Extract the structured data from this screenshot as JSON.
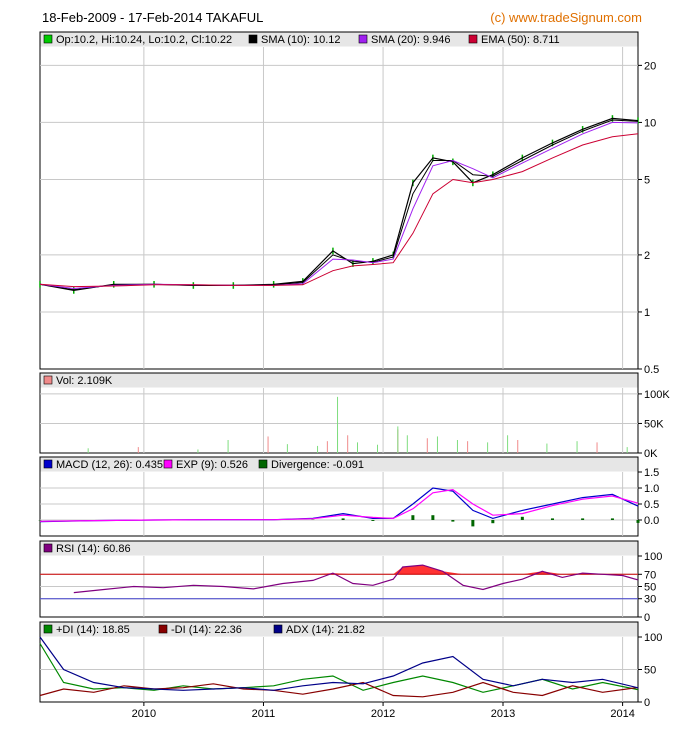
{
  "header": {
    "title": "18-Feb-2009 - 17-Feb-2014 TAKAFUL",
    "credit": "(c) www.tradeSignum.com"
  },
  "colors": {
    "price_up": "#00aa00",
    "price_bar": "#000000",
    "sma10": "#000000",
    "sma20": "#a020f0",
    "ema50": "#cc0033",
    "vol_up": "#7fdd7f",
    "vol_down": "#f08a8a",
    "macd": "#0000cc",
    "exp": "#ff00ff",
    "divergence": "#006600",
    "rsi": "#800080",
    "rsi_fill": "#ff3333",
    "rsi_70": "#cc0000",
    "rsi_30": "#4040cc",
    "pdi": "#008800",
    "mdi": "#880000",
    "adx": "#000088",
    "legend_bg": "#e6e6e6",
    "grid": "#c8c8c8"
  },
  "chart_data": [
    {
      "type": "line",
      "panel": "price",
      "scale": "log",
      "ylim": [
        0.5,
        25
      ],
      "yticks": [
        {
          "value": 0.5,
          "label": "0.5"
        },
        {
          "value": 1,
          "label": "1"
        },
        {
          "value": 2,
          "label": "2"
        },
        {
          "value": 5,
          "label": "5"
        },
        {
          "value": 10,
          "label": "10"
        },
        {
          "value": 20,
          "label": "20"
        }
      ],
      "legend": [
        {
          "swatch": "#00cc00",
          "text": "Op:10.2, Hi:10.24, Lo:10.2, Cl:10.22"
        },
        {
          "swatch": "#000000",
          "text": "SMA (10): 10.12"
        },
        {
          "swatch": "#a020f0",
          "text": "SMA (20): 9.946"
        },
        {
          "swatch": "#cc0033",
          "text": "EMA (50): 8.711"
        }
      ],
      "x": [
        "2009-02-18",
        "2009-06-01",
        "2009-10-01",
        "2010-02-01",
        "2010-06-01",
        "2010-10-01",
        "2011-02-01",
        "2011-05-01",
        "2011-08-01",
        "2011-10-01",
        "2011-12-01",
        "2012-02-01",
        "2012-04-01",
        "2012-06-01",
        "2012-08-01",
        "2012-10-01",
        "2012-12-01",
        "2013-03-01",
        "2013-06-01",
        "2013-09-01",
        "2013-12-01",
        "2014-02-17"
      ],
      "series": [
        {
          "key": "close",
          "values": [
            1.4,
            1.3,
            1.4,
            1.4,
            1.38,
            1.38,
            1.4,
            1.45,
            2.1,
            1.8,
            1.85,
            2.0,
            4.8,
            6.5,
            6.2,
            4.8,
            5.3,
            6.5,
            7.8,
            9.2,
            10.5,
            10.22
          ]
        },
        {
          "key": "sma10",
          "values": [
            1.4,
            1.31,
            1.39,
            1.4,
            1.38,
            1.38,
            1.39,
            1.43,
            2.0,
            1.85,
            1.83,
            1.95,
            4.2,
            6.3,
            6.3,
            5.3,
            5.2,
            6.3,
            7.6,
            9.0,
            10.3,
            10.12
          ]
        },
        {
          "key": "sma20",
          "values": [
            1.4,
            1.33,
            1.38,
            1.4,
            1.39,
            1.38,
            1.38,
            1.41,
            1.9,
            1.88,
            1.82,
            1.9,
            3.5,
            5.9,
            6.3,
            5.7,
            5.1,
            6.1,
            7.3,
            8.7,
            10.0,
            9.946
          ]
        },
        {
          "key": "ema50",
          "values": [
            1.4,
            1.36,
            1.37,
            1.39,
            1.39,
            1.38,
            1.38,
            1.39,
            1.65,
            1.75,
            1.78,
            1.82,
            2.6,
            4.2,
            5.0,
            4.8,
            5.0,
            5.5,
            6.5,
            7.6,
            8.4,
            8.711
          ]
        }
      ]
    },
    {
      "type": "bar",
      "panel": "volume",
      "ylim": [
        0,
        110
      ],
      "yticks": [
        {
          "value": 0,
          "label": "0K"
        },
        {
          "value": 50,
          "label": "50K"
        },
        {
          "value": 100,
          "label": "100K"
        }
      ],
      "legend": [
        {
          "swatch": "#f08a8a",
          "text": "Vol: 2.109K"
        }
      ],
      "x": [
        "2009-07",
        "2009-12",
        "2010-06",
        "2010-09",
        "2011-01",
        "2011-03",
        "2011-06",
        "2011-07",
        "2011-08",
        "2011-08",
        "2011-09",
        "2011-10",
        "2011-12",
        "2012-02",
        "2012-02",
        "2012-03",
        "2012-05",
        "2012-06",
        "2012-08",
        "2012-09",
        "2012-11",
        "2013-01",
        "2013-02",
        "2013-05",
        "2013-08",
        "2013-10",
        "2014-01"
      ],
      "values": [
        8,
        10,
        6,
        22,
        28,
        15,
        12,
        20,
        95,
        35,
        30,
        18,
        14,
        40,
        45,
        30,
        25,
        28,
        22,
        20,
        18,
        30,
        22,
        16,
        20,
        18,
        10
      ]
    },
    {
      "type": "line",
      "panel": "macd",
      "ylim": [
        -0.5,
        1.5
      ],
      "yticks": [
        {
          "value": 0,
          "label": "0.0"
        },
        {
          "value": 0.5,
          "label": "0.5"
        },
        {
          "value": 1,
          "label": "1.0"
        },
        {
          "value": 1.5,
          "label": "1.5"
        }
      ],
      "legend": [
        {
          "swatch": "#0000cc",
          "text": "MACD (12, 26): 0.435"
        },
        {
          "swatch": "#ff00ff",
          "text": "EXP (9): 0.526"
        },
        {
          "swatch": "#006600",
          "text": "Divergence: -0.091"
        }
      ],
      "x": [
        "2009-02-18",
        "2009-08-01",
        "2010-02-01",
        "2010-08-01",
        "2011-02-01",
        "2011-06-01",
        "2011-09-01",
        "2011-12-01",
        "2012-02-01",
        "2012-04-01",
        "2012-06-01",
        "2012-08-01",
        "2012-10-01",
        "2012-12-01",
        "2013-03-01",
        "2013-06-01",
        "2013-09-01",
        "2013-12-01",
        "2014-02-17"
      ],
      "series": [
        {
          "key": "macd",
          "values": [
            -0.05,
            -0.02,
            0.0,
            0.01,
            0.01,
            0.05,
            0.2,
            0.05,
            0.05,
            0.5,
            1.0,
            0.9,
            0.3,
            0.05,
            0.3,
            0.5,
            0.7,
            0.8,
            0.435
          ]
        },
        {
          "key": "exp",
          "values": [
            -0.04,
            -0.02,
            0.0,
            0.01,
            0.01,
            0.04,
            0.15,
            0.08,
            0.05,
            0.35,
            0.85,
            0.95,
            0.5,
            0.15,
            0.2,
            0.45,
            0.65,
            0.75,
            0.526
          ]
        },
        {
          "key": "divergence",
          "values": [
            -0.01,
            0.0,
            0.0,
            0.0,
            0.0,
            0.01,
            0.05,
            -0.03,
            0.0,
            0.15,
            0.15,
            -0.05,
            -0.2,
            -0.1,
            0.1,
            0.05,
            0.05,
            0.05,
            -0.091
          ]
        }
      ]
    },
    {
      "type": "line",
      "panel": "rsi",
      "ylim": [
        0,
        100
      ],
      "yticks": [
        {
          "value": 0,
          "label": "0"
        },
        {
          "value": 30,
          "label": "30"
        },
        {
          "value": 50,
          "label": "50"
        },
        {
          "value": 70,
          "label": "70"
        },
        {
          "value": 100,
          "label": "100"
        }
      ],
      "legend": [
        {
          "swatch": "#800080",
          "text": "RSI (14): 60.86"
        }
      ],
      "x": [
        "2009-06-01",
        "2009-09-01",
        "2009-12-01",
        "2010-03-01",
        "2010-06-01",
        "2010-09-01",
        "2010-12-01",
        "2011-03-01",
        "2011-06-01",
        "2011-08-01",
        "2011-10-01",
        "2011-12-01",
        "2012-02-01",
        "2012-03-01",
        "2012-05-01",
        "2012-07-01",
        "2012-09-01",
        "2012-11-01",
        "2013-01-01",
        "2013-03-01",
        "2013-05-01",
        "2013-07-01",
        "2013-09-01",
        "2013-11-01",
        "2014-01-01",
        "2014-02-17"
      ],
      "values": [
        40,
        45,
        50,
        48,
        52,
        50,
        46,
        55,
        60,
        72,
        55,
        52,
        62,
        82,
        85,
        75,
        52,
        45,
        55,
        62,
        75,
        65,
        72,
        70,
        68,
        60.86
      ]
    },
    {
      "type": "line",
      "panel": "dmi",
      "ylim": [
        0,
        100
      ],
      "yticks": [
        {
          "value": 0,
          "label": "0"
        },
        {
          "value": 50,
          "label": "50"
        },
        {
          "value": 100,
          "label": "100"
        }
      ],
      "legend": [
        {
          "swatch": "#008800",
          "text": "+DI (14): 18.85"
        },
        {
          "swatch": "#880000",
          "text": "-DI (14): 22.36"
        },
        {
          "swatch": "#000088",
          "text": "ADX (14): 21.82"
        }
      ],
      "x": [
        "2009-02-18",
        "2009-05-01",
        "2009-08-01",
        "2009-11-01",
        "2010-02-01",
        "2010-05-01",
        "2010-08-01",
        "2010-11-01",
        "2011-02-01",
        "2011-05-01",
        "2011-08-01",
        "2011-11-01",
        "2012-02-01",
        "2012-05-01",
        "2012-08-01",
        "2012-11-01",
        "2013-02-01",
        "2013-05-01",
        "2013-08-01",
        "2013-11-01",
        "2014-02-17"
      ],
      "series": [
        {
          "key": "pdi",
          "values": [
            90,
            30,
            20,
            22,
            18,
            25,
            20,
            22,
            25,
            35,
            40,
            18,
            30,
            40,
            30,
            15,
            25,
            35,
            20,
            30,
            18.85
          ]
        },
        {
          "key": "mdi",
          "values": [
            10,
            20,
            15,
            25,
            20,
            22,
            28,
            20,
            18,
            12,
            20,
            30,
            10,
            8,
            15,
            30,
            15,
            10,
            25,
            15,
            22.36
          ]
        },
        {
          "key": "adx",
          "values": [
            100,
            50,
            30,
            22,
            20,
            18,
            20,
            22,
            18,
            25,
            30,
            28,
            40,
            60,
            70,
            35,
            25,
            35,
            30,
            35,
            21.82
          ]
        }
      ]
    }
  ],
  "xaxis": {
    "start": "2009-02-18",
    "end": "2014-02-17",
    "ticks": [
      {
        "date": "2010-01-01",
        "label": "2010"
      },
      {
        "date": "2011-01-01",
        "label": "2011"
      },
      {
        "date": "2012-01-01",
        "label": "2012"
      },
      {
        "date": "2013-01-01",
        "label": "2013"
      },
      {
        "date": "2014-01-01",
        "label": "2014"
      }
    ]
  }
}
